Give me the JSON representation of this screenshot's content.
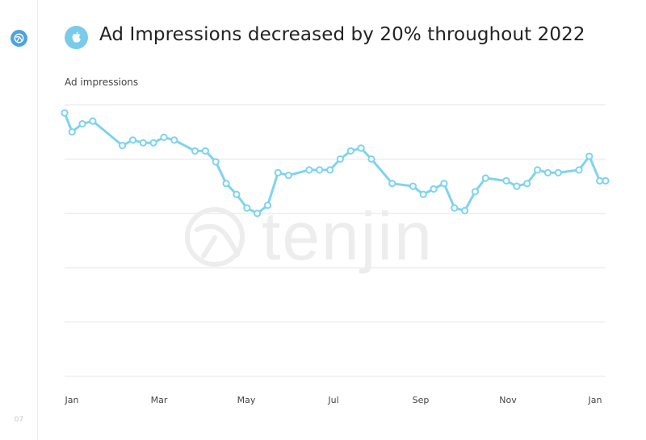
{
  "page": {
    "title": "Ad Impressions decreased by 20% throughout 2022",
    "page_number": "07",
    "sidebar_icon": "tenjin-logo-icon",
    "title_icon": "apple-icon",
    "watermark_text": "tenjin",
    "colors": {
      "line": "#7fd3ee",
      "point_fill": "#ffffff",
      "grid": "#e6e6e6",
      "sidebar_logo": "#4fa3dc",
      "title_badge": "#79cbeb",
      "watermark": "#ededed"
    }
  },
  "chart_data": {
    "type": "line",
    "title": "Ad Impressions decreased by 20% throughout 2022",
    "ylabel": "Ad impressions",
    "xlabel": "",
    "x_tick_labels": [
      "Jan",
      "Mar",
      "May",
      "Jul",
      "Sep",
      "Nov",
      "Jan"
    ],
    "xlim": [
      "2022-01-01",
      "2023-01-01"
    ],
    "ylim": [
      0,
      100
    ],
    "grid": true,
    "grid_lines": 6,
    "legend": "none",
    "series": [
      {
        "x": [
          "2022-01-01",
          "2022-01-06",
          "2022-01-13",
          "2022-01-20",
          "2022-02-09",
          "2022-02-16",
          "2022-02-23",
          "2022-03-02",
          "2022-03-09",
          "2022-03-16",
          "2022-03-30",
          "2022-04-06",
          "2022-04-13",
          "2022-04-20",
          "2022-04-27",
          "2022-05-04",
          "2022-05-11",
          "2022-05-18",
          "2022-05-25",
          "2022-06-01",
          "2022-06-15",
          "2022-06-22",
          "2022-06-29",
          "2022-07-06",
          "2022-07-13",
          "2022-07-20",
          "2022-07-27",
          "2022-08-10",
          "2022-08-24",
          "2022-08-31",
          "2022-09-07",
          "2022-09-14",
          "2022-09-21",
          "2022-09-28",
          "2022-10-05",
          "2022-10-12",
          "2022-10-26",
          "2022-11-02",
          "2022-11-09",
          "2022-11-16",
          "2022-11-23",
          "2022-11-30",
          "2022-12-14",
          "2022-12-21",
          "2022-12-28",
          "2023-01-01"
        ],
        "values": [
          97,
          90,
          93,
          94,
          85,
          87,
          86,
          86,
          88,
          87,
          83,
          83,
          79,
          71,
          67,
          62,
          60,
          63,
          75,
          74,
          76,
          76,
          76,
          80,
          83,
          84,
          80,
          71,
          70,
          67,
          69,
          71,
          62,
          61,
          68,
          73,
          72,
          70,
          71,
          76,
          75,
          75,
          76,
          81,
          72,
          72
        ]
      }
    ]
  }
}
